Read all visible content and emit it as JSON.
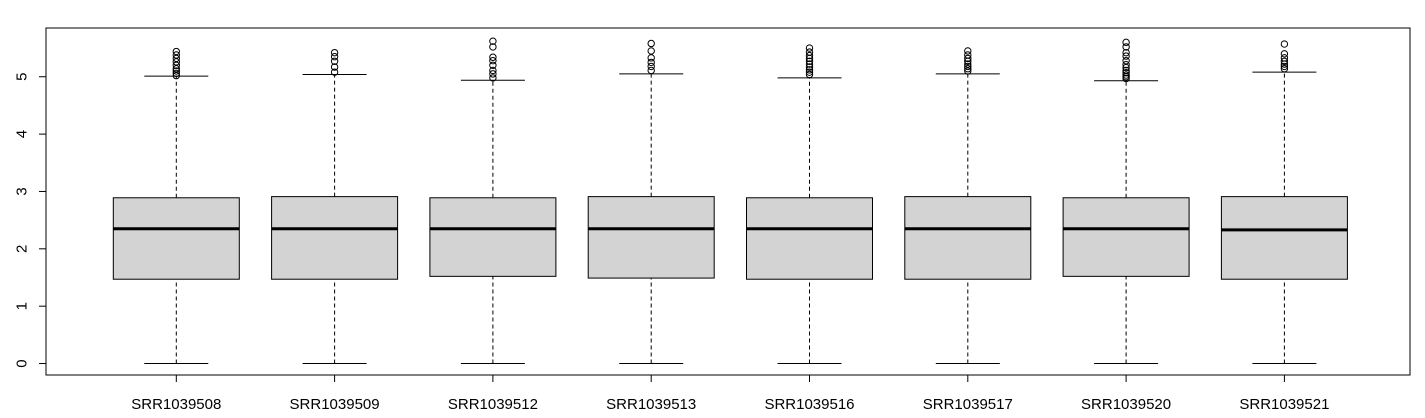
{
  "chart_data": {
    "type": "boxplot",
    "title": "",
    "xlabel": "",
    "ylabel": "",
    "ylim": [
      -0.2,
      5.85
    ],
    "y_ticks": [
      0,
      1,
      2,
      3,
      4,
      5
    ],
    "y_tick_labels": [
      "0",
      "1",
      "2",
      "3",
      "4",
      "5"
    ],
    "grid": false,
    "legend": "none",
    "categories": [
      "SRR1039508",
      "SRR1039509",
      "SRR1039512",
      "SRR1039513",
      "SRR1039516",
      "SRR1039517",
      "SRR1039520",
      "SRR1039521"
    ],
    "box_fill": "#d3d3d3",
    "series": [
      {
        "category": "SRR1039508",
        "whisker_low": 0,
        "q1": 1.47,
        "median": 2.35,
        "q3": 2.89,
        "whisker_high": 5.01,
        "outliers": [
          5.02,
          5.06,
          5.1,
          5.14,
          5.2,
          5.26,
          5.32,
          5.38,
          5.44
        ]
      },
      {
        "category": "SRR1039509",
        "whisker_low": 0,
        "q1": 1.47,
        "median": 2.35,
        "q3": 2.91,
        "whisker_high": 5.04,
        "outliers": [
          5.08,
          5.17,
          5.27,
          5.35,
          5.42
        ]
      },
      {
        "category": "SRR1039512",
        "whisker_low": 0,
        "q1": 1.52,
        "median": 2.35,
        "q3": 2.89,
        "whisker_high": 4.94,
        "outliers": [
          4.98,
          5.05,
          5.11,
          5.2,
          5.28,
          5.34,
          5.52,
          5.62
        ]
      },
      {
        "category": "SRR1039513",
        "whisker_low": 0,
        "q1": 1.49,
        "median": 2.35,
        "q3": 2.91,
        "whisker_high": 5.05,
        "outliers": [
          5.11,
          5.18,
          5.25,
          5.33,
          5.45,
          5.58
        ]
      },
      {
        "category": "SRR1039516",
        "whisker_low": 0,
        "q1": 1.47,
        "median": 2.35,
        "q3": 2.89,
        "whisker_high": 4.98,
        "outliers": [
          5.04,
          5.08,
          5.12,
          5.17,
          5.22,
          5.27,
          5.32,
          5.37,
          5.43,
          5.5
        ]
      },
      {
        "category": "SRR1039517",
        "whisker_low": 0,
        "q1": 1.47,
        "median": 2.35,
        "q3": 2.91,
        "whisker_high": 5.05,
        "outliers": [
          5.1,
          5.14,
          5.18,
          5.22,
          5.27,
          5.32,
          5.38,
          5.45
        ]
      },
      {
        "category": "SRR1039520",
        "whisker_low": 0,
        "q1": 1.52,
        "median": 2.35,
        "q3": 2.89,
        "whisker_high": 4.93,
        "outliers": [
          4.97,
          5.0,
          5.03,
          5.07,
          5.11,
          5.16,
          5.21,
          5.28,
          5.36,
          5.42,
          5.52,
          5.6
        ]
      },
      {
        "category": "SRR1039521",
        "whisker_low": 0,
        "q1": 1.47,
        "median": 2.33,
        "q3": 2.91,
        "whisker_high": 5.08,
        "outliers": [
          5.14,
          5.18,
          5.22,
          5.27,
          5.33,
          5.4,
          5.57
        ]
      }
    ]
  }
}
